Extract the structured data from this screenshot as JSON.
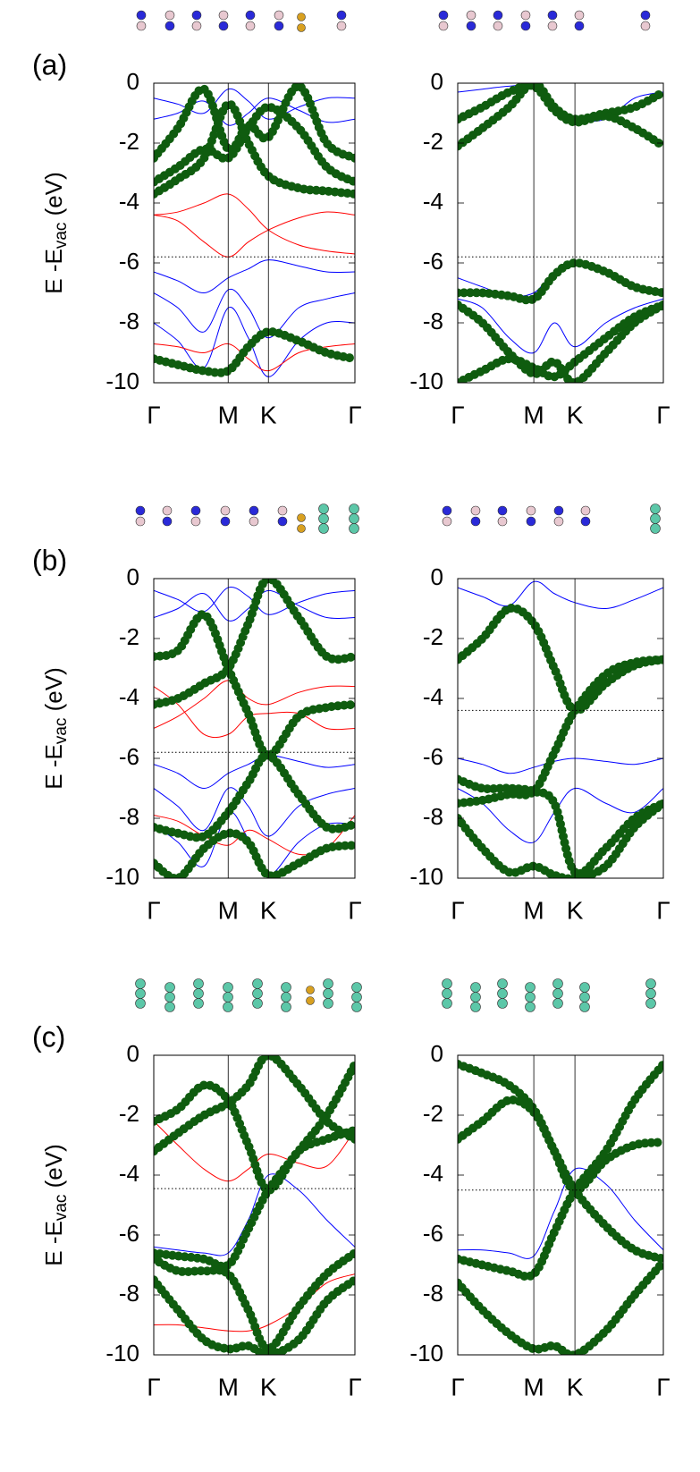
{
  "chart_data": [
    {
      "type": "line",
      "panel_label": "(a)",
      "y_label": "E -E",
      "y_label_sub": "vac",
      "y_label_unit": " (eV)",
      "x": [
        0,
        0.12,
        0.25,
        0.37,
        0.47,
        0.57,
        0.72,
        0.86,
        1
      ],
      "xlim": [
        0,
        1
      ],
      "xticks": [
        {
          "value": 0,
          "label": "Γ"
        },
        {
          "value": 0.37,
          "label": "M"
        },
        {
          "value": 0.57,
          "label": "K"
        },
        {
          "value": 1,
          "label": "Γ"
        }
      ],
      "ylim": [
        -10,
        0
      ],
      "yticks": [
        -10,
        -8,
        -6,
        -4,
        -2,
        0
      ],
      "fermi_level": -5.8,
      "series": [
        {
          "color": "#0000ff",
          "values": [
            -6.3,
            -6.6,
            -7.0,
            -6.5,
            -6.2,
            -5.9,
            -6.1,
            -6.3,
            -6.3
          ]
        },
        {
          "color": "#0000ff",
          "values": [
            -7.0,
            -7.5,
            -8.3,
            -6.9,
            -7.5,
            -8.5,
            -7.5,
            -7.2,
            -7.0
          ]
        },
        {
          "color": "#0000ff",
          "values": [
            -8.0,
            -8.6,
            -9.5,
            -7.5,
            -8.5,
            -9.8,
            -8.6,
            -8.0,
            -8.0
          ]
        },
        {
          "color": "#0000ff",
          "values": [
            -0.5,
            -0.7,
            -1.0,
            -0.2,
            -0.6,
            -1.2,
            -0.8,
            -0.5,
            -0.5
          ]
        },
        {
          "color": "#0000ff",
          "values": [
            -1.2,
            -1.0,
            -0.6,
            -1.4,
            -1.0,
            -0.5,
            -0.9,
            -1.3,
            -1.2
          ]
        },
        {
          "color": "#ff0000",
          "values": [
            -4.4,
            -4.6,
            -5.3,
            -5.8,
            -5.3,
            -4.9,
            -4.5,
            -4.3,
            -4.4
          ]
        },
        {
          "color": "#ff0000",
          "values": [
            -4.4,
            -4.3,
            -4.0,
            -3.7,
            -4.2,
            -4.9,
            -5.4,
            -5.6,
            -5.7
          ]
        },
        {
          "color": "#ff0000",
          "values": [
            -8.7,
            -8.8,
            -9.0,
            -8.7,
            -9.2,
            -9.6,
            -9.0,
            -8.8,
            -8.7
          ]
        },
        {
          "color": "#0f5c0f",
          "markers": true,
          "values": [
            -3.3,
            -2.8,
            -2.2,
            -2.5,
            -1.5,
            -0.8,
            -1.5,
            -2.8,
            -3.3
          ]
        },
        {
          "color": "#0f5c0f",
          "markers": true,
          "values": [
            -2.5,
            -1.5,
            -0.2,
            -2.2,
            -1.4,
            -1.8,
            -0.1,
            -2.0,
            -2.5
          ]
        },
        {
          "color": "#0f5c0f",
          "markers": true,
          "values": [
            -3.7,
            -3.2,
            -2.5,
            -0.7,
            -2.0,
            -3.1,
            -3.5,
            -3.6,
            -3.7
          ]
        },
        {
          "color": "#0f5c0f",
          "markers": true,
          "values": [
            -9.2,
            -9.4,
            -9.6,
            -9.6,
            -8.8,
            -8.3,
            -8.6,
            -9.0,
            -9.2
          ]
        }
      ]
    },
    {
      "type": "line",
      "x": [
        0,
        0.12,
        0.25,
        0.37,
        0.47,
        0.57,
        0.72,
        0.86,
        1
      ],
      "xlim": [
        0,
        1
      ],
      "xticks": [
        {
          "value": 0,
          "label": "Γ"
        },
        {
          "value": 0.37,
          "label": "M"
        },
        {
          "value": 0.57,
          "label": "K"
        },
        {
          "value": 1,
          "label": "Γ"
        }
      ],
      "ylim": [
        -10,
        0
      ],
      "yticks": [
        -10,
        -8,
        -6,
        -4,
        -2,
        0
      ],
      "fermi_level": -5.8,
      "series": [
        {
          "color": "#0000ff",
          "values": [
            -0.3,
            -0.2,
            -0.1,
            -0.1,
            -0.8,
            -1.2,
            -1.2,
            -0.5,
            -0.3
          ]
        },
        {
          "color": "#0000ff",
          "values": [
            -6.5,
            -6.8,
            -7.1,
            -7.0,
            -6.3,
            -6.0,
            -6.4,
            -6.8,
            -7.0
          ]
        },
        {
          "color": "#0000ff",
          "values": [
            -7.2,
            -7.5,
            -8.5,
            -9.0,
            -8.0,
            -8.8,
            -8.0,
            -7.5,
            -7.2
          ]
        },
        {
          "color": "#0f5c0f",
          "markers": true,
          "values": [
            -2.1,
            -1.5,
            -0.8,
            0.0,
            -0.8,
            -1.2,
            -1.0,
            -0.8,
            -0.3
          ]
        },
        {
          "color": "#0f5c0f",
          "markers": true,
          "values": [
            -1.2,
            -0.8,
            -0.3,
            -0.1,
            -0.9,
            -1.3,
            -1.1,
            -1.5,
            -2.1
          ]
        },
        {
          "color": "#0f5c0f",
          "markers": true,
          "values": [
            -7.0,
            -7.0,
            -7.1,
            -7.2,
            -6.4,
            -6.0,
            -6.3,
            -6.8,
            -7.0
          ]
        },
        {
          "color": "#0f5c0f",
          "markers": true,
          "values": [
            -7.4,
            -8.0,
            -9.0,
            -9.7,
            -9.3,
            -10.0,
            -9.0,
            -8.0,
            -7.4
          ]
        },
        {
          "color": "#0f5c0f",
          "markers": true,
          "values": [
            -10.0,
            -9.6,
            -9.2,
            -9.5,
            -9.8,
            -9.3,
            -8.5,
            -7.8,
            -7.4
          ]
        }
      ]
    },
    {
      "type": "line",
      "panel_label": "(b)",
      "y_label": "E -E",
      "y_label_sub": "vac",
      "y_label_unit": " (eV)",
      "x": [
        0,
        0.12,
        0.25,
        0.37,
        0.47,
        0.57,
        0.72,
        0.86,
        1
      ],
      "xlim": [
        0,
        1
      ],
      "xticks": [
        {
          "value": 0,
          "label": "Γ"
        },
        {
          "value": 0.37,
          "label": "M"
        },
        {
          "value": 0.57,
          "label": "K"
        },
        {
          "value": 1,
          "label": "Γ"
        }
      ],
      "ylim": [
        -10,
        0
      ],
      "yticks": [
        -10,
        -8,
        -6,
        -4,
        -2,
        0
      ],
      "fermi_level": -5.8,
      "series": [
        {
          "color": "#0000ff",
          "values": [
            -6.2,
            -6.5,
            -7.0,
            -6.5,
            -6.2,
            -5.9,
            -6.1,
            -6.3,
            -6.2
          ]
        },
        {
          "color": "#0000ff",
          "values": [
            -7.0,
            -7.6,
            -8.4,
            -7.0,
            -7.6,
            -8.6,
            -7.6,
            -7.2,
            -7.0
          ]
        },
        {
          "color": "#0000ff",
          "values": [
            -8.2,
            -8.8,
            -9.6,
            -7.8,
            -8.7,
            -9.9,
            -8.8,
            -8.2,
            -8.2
          ]
        },
        {
          "color": "#0000ff",
          "values": [
            -0.4,
            -0.7,
            -1.1,
            -0.3,
            -0.6,
            -1.2,
            -0.8,
            -0.5,
            -0.4
          ]
        },
        {
          "color": "#0000ff",
          "values": [
            -1.3,
            -1.0,
            -0.5,
            -1.4,
            -1.0,
            -0.4,
            -0.9,
            -1.3,
            -1.3
          ]
        },
        {
          "color": "#ff0000",
          "values": [
            -5.0,
            -4.6,
            -4.0,
            -3.4,
            -4.0,
            -4.2,
            -3.8,
            -3.6,
            -3.6
          ]
        },
        {
          "color": "#ff0000",
          "values": [
            -3.6,
            -4.2,
            -5.2,
            -5.2,
            -4.6,
            -4.5,
            -4.5,
            -5.0,
            -5.0
          ]
        },
        {
          "color": "#ff0000",
          "values": [
            -7.9,
            -8.1,
            -8.6,
            -8.9,
            -8.4,
            -8.7,
            -9.2,
            -9.0,
            -7.9
          ]
        },
        {
          "color": "#0f5c0f",
          "markers": true,
          "values": [
            -2.6,
            -2.4,
            -1.2,
            -3.0,
            -4.5,
            -5.9,
            -4.6,
            -4.3,
            -4.2
          ]
        },
        {
          "color": "#0f5c0f",
          "markers": true,
          "values": [
            -4.2,
            -4.0,
            -3.5,
            -3.0,
            -1.5,
            0.0,
            -1.3,
            -2.6,
            -2.6
          ]
        },
        {
          "color": "#0f5c0f",
          "markers": true,
          "values": [
            -8.3,
            -8.5,
            -8.6,
            -7.8,
            -6.8,
            -5.9,
            -7.2,
            -8.3,
            -8.2
          ]
        },
        {
          "color": "#0f5c0f",
          "markers": true,
          "values": [
            -9.5,
            -10.0,
            -9.0,
            -8.5,
            -8.8,
            -9.9,
            -9.5,
            -9.0,
            -8.9
          ]
        }
      ]
    },
    {
      "type": "line",
      "x": [
        0,
        0.12,
        0.25,
        0.37,
        0.47,
        0.57,
        0.72,
        0.86,
        1
      ],
      "xlim": [
        0,
        1
      ],
      "xticks": [
        {
          "value": 0,
          "label": "Γ"
        },
        {
          "value": 0.37,
          "label": "M"
        },
        {
          "value": 0.57,
          "label": "K"
        },
        {
          "value": 1,
          "label": "Γ"
        }
      ],
      "ylim": [
        -10,
        0
      ],
      "yticks": [
        -10,
        -8,
        -6,
        -4,
        -2,
        0
      ],
      "fermi_level": -4.4,
      "series": [
        {
          "color": "#0000ff",
          "values": [
            -6.0,
            -6.2,
            -6.5,
            -6.3,
            -6.1,
            -6.0,
            -6.1,
            -6.2,
            -6.0
          ]
        },
        {
          "color": "#0000ff",
          "values": [
            -7.0,
            -7.5,
            -8.4,
            -8.8,
            -7.8,
            -7.0,
            -7.5,
            -7.8,
            -7.0
          ]
        },
        {
          "color": "#0000ff",
          "values": [
            -0.3,
            -0.6,
            -0.9,
            -0.1,
            -0.5,
            -0.8,
            -1.0,
            -0.7,
            -0.3
          ]
        },
        {
          "color": "#0f5c0f",
          "markers": true,
          "values": [
            -2.7,
            -2.0,
            -1.0,
            -1.5,
            -3.0,
            -4.4,
            -3.5,
            -2.9,
            -2.7
          ]
        },
        {
          "color": "#0f5c0f",
          "markers": true,
          "values": [
            -7.5,
            -7.4,
            -7.2,
            -7.1,
            -5.8,
            -4.4,
            -3.2,
            -2.8,
            -2.7
          ]
        },
        {
          "color": "#0f5c0f",
          "markers": true,
          "values": [
            -6.7,
            -7.0,
            -7.0,
            -7.1,
            -7.5,
            -9.8,
            -9.0,
            -8.0,
            -7.5
          ]
        },
        {
          "color": "#0f5c0f",
          "markers": true,
          "values": [
            -8.0,
            -9.0,
            -9.8,
            -9.6,
            -9.9,
            -10.0,
            -9.6,
            -8.3,
            -7.5
          ]
        }
      ]
    },
    {
      "type": "line",
      "panel_label": "(c)",
      "y_label": "E -E",
      "y_label_sub": "vac",
      "y_label_unit": " (eV)",
      "x": [
        0,
        0.12,
        0.25,
        0.37,
        0.47,
        0.57,
        0.72,
        0.86,
        1
      ],
      "xlim": [
        0,
        1
      ],
      "xticks": [
        {
          "value": 0,
          "label": "Γ"
        },
        {
          "value": 0.37,
          "label": "M"
        },
        {
          "value": 0.57,
          "label": "K"
        },
        {
          "value": 1,
          "label": "Γ"
        }
      ],
      "ylim": [
        -10,
        0
      ],
      "yticks": [
        -10,
        -8,
        -6,
        -4,
        -2,
        0
      ],
      "fermi_level": -4.45,
      "series": [
        {
          "color": "#0000ff",
          "values": [
            -6.4,
            -6.5,
            -6.6,
            -6.6,
            -5.5,
            -4.0,
            -4.5,
            -5.5,
            -6.4
          ]
        },
        {
          "color": "#ff0000",
          "values": [
            -2.2,
            -3.0,
            -3.8,
            -4.2,
            -3.8,
            -3.3,
            -3.6,
            -3.7,
            -2.5
          ]
        },
        {
          "color": "#ff0000",
          "values": [
            -9.0,
            -9.0,
            -9.1,
            -9.2,
            -9.2,
            -9.0,
            -8.4,
            -7.6,
            -7.3
          ]
        },
        {
          "color": "#0f5c0f",
          "markers": true,
          "values": [
            -2.2,
            -1.8,
            -1.0,
            -1.5,
            -3.0,
            -4.5,
            -3.2,
            -2.8,
            -2.5
          ]
        },
        {
          "color": "#0f5c0f",
          "markers": true,
          "values": [
            -6.6,
            -6.7,
            -6.8,
            -7.0,
            -5.8,
            -4.5,
            -3.2,
            -2.0,
            -0.3
          ]
        },
        {
          "color": "#0f5c0f",
          "markers": true,
          "values": [
            -6.8,
            -7.2,
            -7.2,
            -7.3,
            -8.5,
            -9.8,
            -8.4,
            -7.3,
            -6.6
          ]
        },
        {
          "color": "#0f5c0f",
          "markers": true,
          "values": [
            -7.5,
            -8.5,
            -9.5,
            -9.8,
            -9.7,
            -10.0,
            -9.5,
            -8.2,
            -7.5
          ]
        },
        {
          "color": "#0f5c0f",
          "markers": true,
          "values": [
            -3.2,
            -2.6,
            -2.0,
            -1.6,
            -1.0,
            0.0,
            -1.0,
            -2.2,
            -2.8
          ]
        }
      ]
    },
    {
      "type": "line",
      "x": [
        0,
        0.12,
        0.25,
        0.37,
        0.47,
        0.57,
        0.72,
        0.86,
        1
      ],
      "xlim": [
        0,
        1
      ],
      "xticks": [
        {
          "value": 0,
          "label": "Γ"
        },
        {
          "value": 0.37,
          "label": "M"
        },
        {
          "value": 0.57,
          "label": "K"
        },
        {
          "value": 1,
          "label": "Γ"
        }
      ],
      "ylim": [
        -10,
        0
      ],
      "yticks": [
        -10,
        -8,
        -6,
        -4,
        -2,
        0
      ],
      "fermi_level": -4.5,
      "series": [
        {
          "color": "#0000ff",
          "values": [
            -6.5,
            -6.5,
            -6.6,
            -6.7,
            -5.2,
            -3.8,
            -4.3,
            -5.5,
            -6.5
          ]
        },
        {
          "color": "#0f5c0f",
          "markers": true,
          "values": [
            -0.3,
            -0.6,
            -1.0,
            -1.8,
            -3.2,
            -4.5,
            -3.5,
            -3.0,
            -2.9
          ]
        },
        {
          "color": "#0f5c0f",
          "markers": true,
          "values": [
            -2.8,
            -2.2,
            -1.5,
            -1.9,
            -3.2,
            -4.5,
            -5.7,
            -6.5,
            -6.8
          ]
        },
        {
          "color": "#0f5c0f",
          "markers": true,
          "values": [
            -6.8,
            -7.0,
            -7.2,
            -7.3,
            -5.9,
            -4.5,
            -3.2,
            -1.5,
            -0.3
          ]
        },
        {
          "color": "#0f5c0f",
          "markers": true,
          "values": [
            -7.6,
            -8.5,
            -9.3,
            -9.8,
            -9.7,
            -10.0,
            -9.2,
            -8.0,
            -6.9
          ]
        }
      ]
    }
  ]
}
